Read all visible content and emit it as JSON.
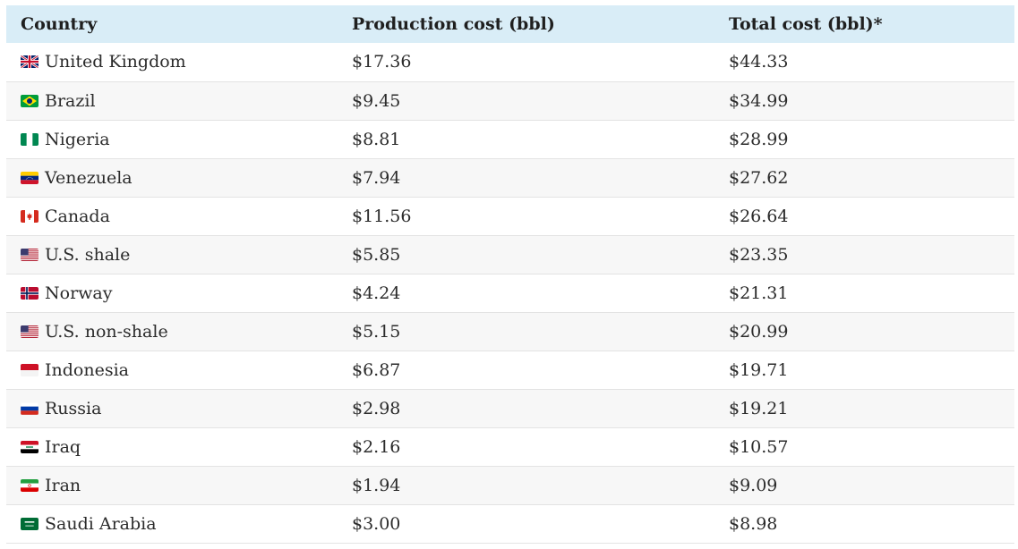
{
  "headers": {
    "country": "Country",
    "production": "Production cost (bbl)",
    "total": "Total cost (bbl)*"
  },
  "rows": [
    {
      "country": "United Kingdom",
      "flag": "uk-flag-icon",
      "production": "$17.36",
      "total": "$44.33"
    },
    {
      "country": "Brazil",
      "flag": "brazil-flag-icon",
      "production": "$9.45",
      "total": "$34.99"
    },
    {
      "country": "Nigeria",
      "flag": "nigeria-flag-icon",
      "production": "$8.81",
      "total": "$28.99"
    },
    {
      "country": "Venezuela",
      "flag": "venezuela-flag-icon",
      "production": "$7.94",
      "total": "$27.62"
    },
    {
      "country": "Canada",
      "flag": "canada-flag-icon",
      "production": "$11.56",
      "total": "$26.64"
    },
    {
      "country": "U.S. shale",
      "flag": "usa-flag-icon",
      "production": "$5.85",
      "total": "$23.35"
    },
    {
      "country": "Norway",
      "flag": "norway-flag-icon",
      "production": "$4.24",
      "total": "$21.31"
    },
    {
      "country": "U.S. non-shale",
      "flag": "usa-flag-icon",
      "production": "$5.15",
      "total": "$20.99"
    },
    {
      "country": "Indonesia",
      "flag": "indonesia-flag-icon",
      "production": "$6.87",
      "total": "$19.71"
    },
    {
      "country": "Russia",
      "flag": "russia-flag-icon",
      "production": "$2.98",
      "total": "$19.21"
    },
    {
      "country": "Iraq",
      "flag": "iraq-flag-icon",
      "production": "$2.16",
      "total": "$10.57"
    },
    {
      "country": "Iran",
      "flag": "iran-flag-icon",
      "production": "$1.94",
      "total": "$9.09"
    },
    {
      "country": "Saudi Arabia",
      "flag": "saudi-arabia-flag-icon",
      "production": "$3.00",
      "total": "$8.98"
    }
  ],
  "colors": {
    "header_bg": "#d9edf7",
    "row_alt_bg": "#f7f7f7",
    "border": "#e3e3e3"
  }
}
